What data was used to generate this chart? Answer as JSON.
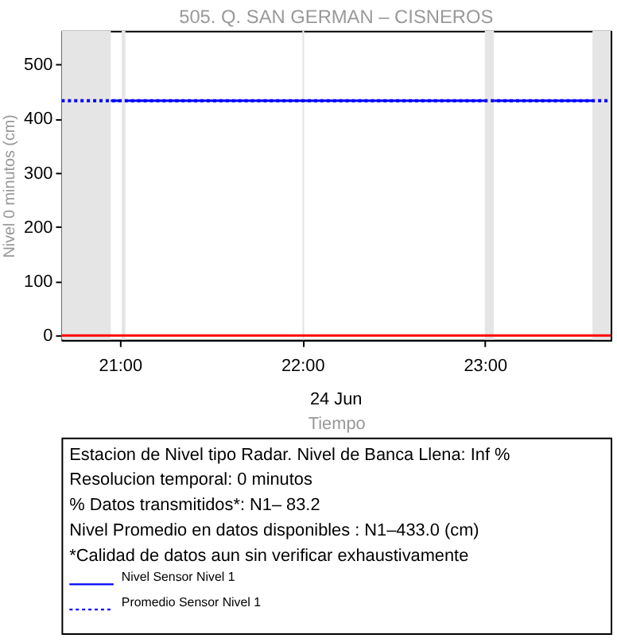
{
  "chart_data": {
    "type": "line",
    "title": "505. Q. SAN GERMAN – CISNEROS",
    "xlabel": "Tiempo",
    "ylabel": "Nivel 0 minutos (cm)",
    "xlim": [
      20.68,
      23.69
    ],
    "xticks": [
      {
        "value": 21,
        "label": "21:00"
      },
      {
        "value": 22,
        "label": "22:00"
      },
      {
        "value": 23,
        "label": "23:00"
      }
    ],
    "ylim": [
      -8,
      562
    ],
    "yticks": [
      0,
      100,
      200,
      300,
      400,
      500
    ],
    "series": [
      {
        "name": "Nivel Sensor Nivel 1",
        "color": "#0000ff",
        "line_style": "solid",
        "x": [
          20.95,
          21.01,
          21.02,
          21.03,
          22.0,
          22.005,
          22.01,
          23.0,
          23.02,
          23.05,
          23.59
        ],
        "values": [
          433,
          433,
          null,
          433,
          433,
          null,
          433,
          433,
          null,
          433,
          433
        ]
      },
      {
        "name": "Promedio Sensor Nivel 1",
        "color": "#0000ff",
        "line_style": "dotted",
        "x": [
          20.68,
          23.69
        ],
        "values": [
          433,
          433
        ]
      }
    ],
    "ref_lines": [
      {
        "axis": "y",
        "value": 0,
        "color": "#ff0000"
      }
    ],
    "bands": [
      {
        "axis": "x",
        "from": 20.68,
        "to": 20.95,
        "color": "#e5e5e5"
      },
      {
        "axis": "x",
        "from": 21.01,
        "to": 21.03,
        "color": "#e5e5e5"
      },
      {
        "axis": "x",
        "from": 22.0,
        "to": 22.01,
        "color": "#e5e5e5"
      },
      {
        "axis": "x",
        "from": 23.0,
        "to": 23.05,
        "color": "#e5e5e5"
      },
      {
        "axis": "x",
        "from": 23.59,
        "to": 23.69,
        "color": "#e5e5e5"
      }
    ],
    "annotations": [
      "24 Jun",
      "Estacion de Nivel tipo Radar. Nivel de Banca Llena:  Inf %",
      "Resolucion temporal: 0 minutos",
      "% Datos transmitidos*: N1– 83.2",
      "Nivel Promedio en datos disponibles : N1–433.0 (cm)",
      "*Calidad de datos aun sin verificar exhaustivamente"
    ],
    "legend": "bottom",
    "grid": false,
    "marker": "none"
  }
}
